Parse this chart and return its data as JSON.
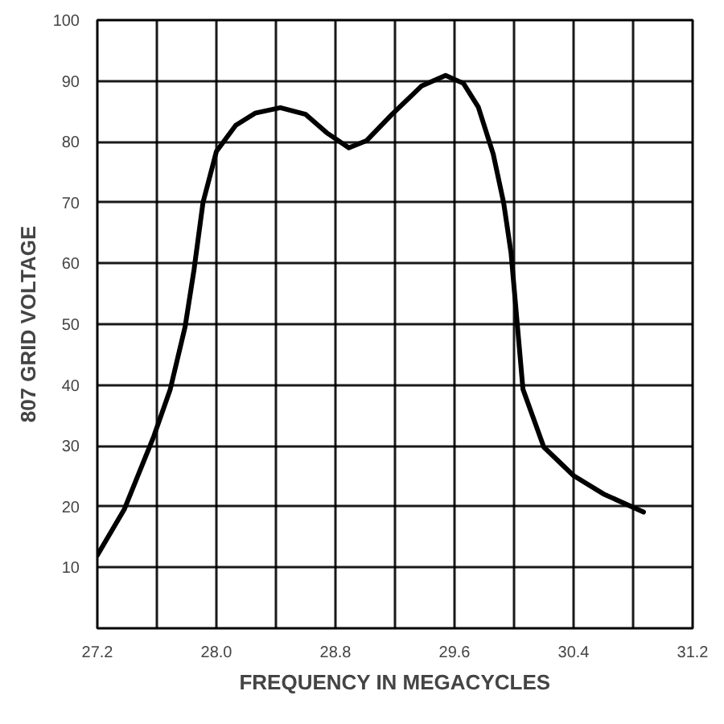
{
  "chart_data": {
    "type": "line",
    "xlabel": "FREQUENCY IN MEGACYCLES",
    "ylabel": "807 GRID VOLTAGE",
    "x": [
      27.2,
      27.38,
      27.58,
      27.69,
      27.79,
      27.85,
      27.91,
      28.0,
      28.13,
      28.26,
      28.43,
      28.6,
      28.74,
      28.89,
      29.01,
      29.18,
      29.38,
      29.54,
      29.66,
      29.76,
      29.86,
      29.93,
      29.98,
      30.02,
      30.06,
      30.2,
      30.4,
      30.6,
      30.87
    ],
    "series": [
      {
        "color": "#000000",
        "values": [
          12,
          19.5,
          31.6,
          39.3,
          49.6,
          59,
          70,
          78.4,
          82.7,
          84.7,
          85.6,
          84.5,
          81.5,
          79,
          80.2,
          84.5,
          89.2,
          90.9,
          89.6,
          85.7,
          78,
          70,
          61.7,
          50.5,
          39.3,
          29.8,
          25.1,
          22.1,
          19.1
        ]
      }
    ],
    "xlim": [
      27.2,
      31.2
    ],
    "xticks": [
      27.2,
      {
        "value": 27.6,
        "label": null
      },
      {
        "value": 28.0,
        "label": "28.0"
      },
      {
        "value": 28.4,
        "label": null
      },
      28.8,
      {
        "value": 29.2,
        "label": null
      },
      29.6,
      {
        "value": 30.0,
        "label": null
      },
      30.4,
      {
        "value": 30.8,
        "label": null
      },
      31.2
    ],
    "ylim": [
      0,
      100
    ],
    "yticks": [
      10,
      20,
      30,
      40,
      50,
      60,
      70,
      80,
      90,
      100
    ],
    "grid": true,
    "marker": "none",
    "line_style": "solid"
  }
}
